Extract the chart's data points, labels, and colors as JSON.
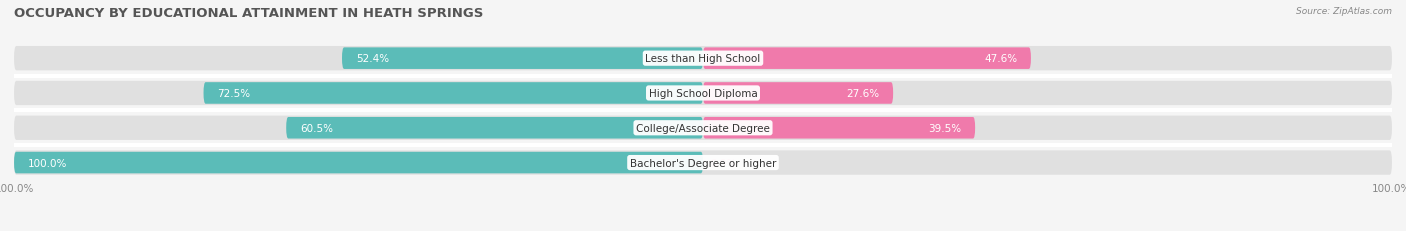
{
  "title": "OCCUPANCY BY EDUCATIONAL ATTAINMENT IN HEATH SPRINGS",
  "source": "Source: ZipAtlas.com",
  "categories": [
    "Less than High School",
    "High School Diploma",
    "College/Associate Degree",
    "Bachelor's Degree or higher"
  ],
  "owner_pct": [
    52.4,
    72.5,
    60.5,
    100.0
  ],
  "renter_pct": [
    47.6,
    27.6,
    39.5,
    0.0
  ],
  "owner_color": "#5bbcb8",
  "renter_color": "#f07aab",
  "renter_color_light": "#f5b8d0",
  "bg_color": "#f5f5f5",
  "bar_bg_color": "#e0e0e0",
  "title_fontsize": 9.5,
  "label_fontsize": 7.5,
  "cat_fontsize": 7.5,
  "legend_fontsize": 8,
  "axis_label_fontsize": 7.5
}
